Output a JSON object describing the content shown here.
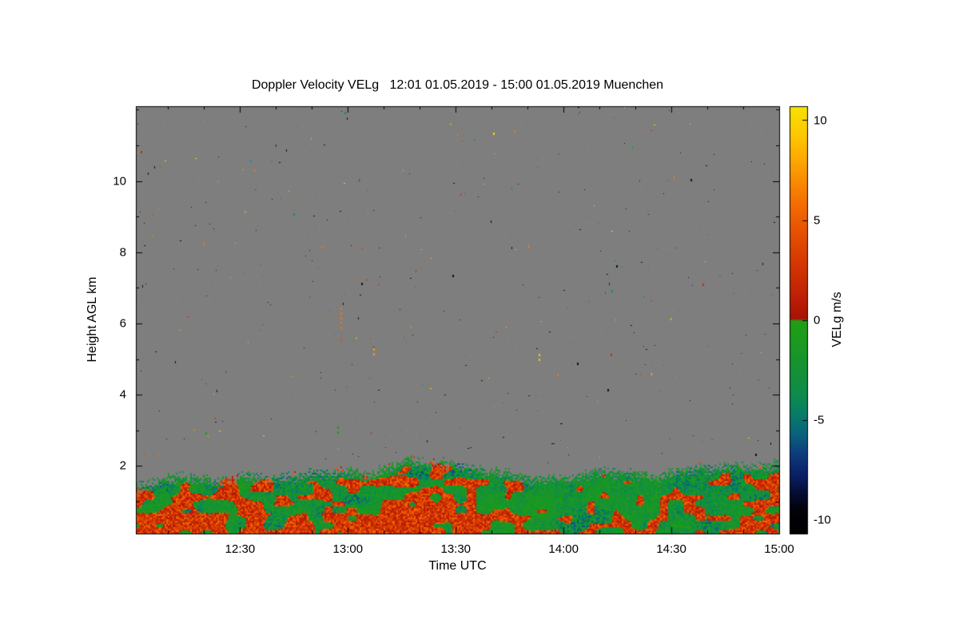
{
  "chart_data": {
    "type": "heatmap",
    "title": "Doppler Velocity VELg   12:01 01.05.2019 - 15:00 01.05.2019 Muenchen",
    "xlabel": "Time UTC",
    "ylabel": "Height AGL km",
    "x_start": "12:01",
    "x_end": "15:00",
    "date": "01.05.2019",
    "station": "Muenchen",
    "x_ticks": [
      "12:30",
      "13:00",
      "13:30",
      "14:00",
      "14:30",
      "15:00"
    ],
    "x_tick_minutes": [
      30,
      60,
      90,
      120,
      150,
      180
    ],
    "x_range_minutes": [
      1,
      180
    ],
    "x_minor_step_minutes": 10,
    "y_ticks": [
      2,
      4,
      6,
      8,
      10
    ],
    "y_minor_step_km": 1,
    "ylim_km": [
      0.1,
      12.1
    ],
    "colorbar": {
      "label": "VELg m/s",
      "units": "m/s",
      "ticks": [
        10,
        5,
        0,
        -5,
        -10
      ],
      "range": [
        -10.7,
        10.7
      ]
    },
    "no_signal_color": "#7e7e7e",
    "seed": 7,
    "colormap_stops": [
      [
        -10.7,
        "#000000"
      ],
      [
        -9.5,
        "#02020a"
      ],
      [
        -8.8,
        "#050b2e"
      ],
      [
        -7.8,
        "#0a1f66"
      ],
      [
        -6.8,
        "#0d3a7d"
      ],
      [
        -5.8,
        "#0a5f7d"
      ],
      [
        -5.0,
        "#08766e"
      ],
      [
        -4.0,
        "#0a8a52"
      ],
      [
        -3.0,
        "#128f3e"
      ],
      [
        -2.0,
        "#17942c"
      ],
      [
        -1.0,
        "#1c9a1e"
      ],
      [
        -0.05,
        "#219d14"
      ],
      [
        0.05,
        "#a81206"
      ],
      [
        1.5,
        "#c32405"
      ],
      [
        3.0,
        "#d63a02"
      ],
      [
        4.5,
        "#e75302"
      ],
      [
        6.0,
        "#f57201"
      ],
      [
        7.5,
        "#fb9a00"
      ],
      [
        9.0,
        "#fdc200"
      ],
      [
        10.7,
        "#f8e200"
      ]
    ],
    "band_profile_units": {
      "t": "minutes after 12:00 UTC",
      "top_km": "km AGL",
      "red_frac": "fraction of positive (downward-red) velocities 0-1"
    },
    "band_profile": [
      {
        "t": 1,
        "top_km": 1.55,
        "red_frac": 0.45
      },
      {
        "t": 8,
        "top_km": 1.7,
        "red_frac": 0.55
      },
      {
        "t": 16,
        "top_km": 1.75,
        "red_frac": 0.6
      },
      {
        "t": 24,
        "top_km": 1.7,
        "red_frac": 0.6
      },
      {
        "t": 32,
        "top_km": 1.75,
        "red_frac": 0.5
      },
      {
        "t": 40,
        "top_km": 1.7,
        "red_frac": 0.45
      },
      {
        "t": 48,
        "top_km": 1.8,
        "red_frac": 0.5
      },
      {
        "t": 56,
        "top_km": 1.85,
        "red_frac": 0.5
      },
      {
        "t": 64,
        "top_km": 1.9,
        "red_frac": 0.55
      },
      {
        "t": 70,
        "top_km": 2.0,
        "red_frac": 0.7
      },
      {
        "t": 76,
        "top_km": 2.35,
        "red_frac": 0.85
      },
      {
        "t": 80,
        "top_km": 2.25,
        "red_frac": 0.85
      },
      {
        "t": 86,
        "top_km": 2.05,
        "red_frac": 0.75
      },
      {
        "t": 92,
        "top_km": 1.95,
        "red_frac": 0.65
      },
      {
        "t": 98,
        "top_km": 1.85,
        "red_frac": 0.45
      },
      {
        "t": 105,
        "top_km": 1.8,
        "red_frac": 0.3
      },
      {
        "t": 112,
        "top_km": 1.75,
        "red_frac": 0.22
      },
      {
        "t": 120,
        "top_km": 1.8,
        "red_frac": 0.2
      },
      {
        "t": 128,
        "top_km": 1.85,
        "red_frac": 0.25
      },
      {
        "t": 136,
        "top_km": 1.8,
        "red_frac": 0.28
      },
      {
        "t": 144,
        "top_km": 1.85,
        "red_frac": 0.3
      },
      {
        "t": 152,
        "top_km": 1.9,
        "red_frac": 0.32
      },
      {
        "t": 160,
        "top_km": 1.9,
        "red_frac": 0.35
      },
      {
        "t": 168,
        "top_km": 1.95,
        "red_frac": 0.45
      },
      {
        "t": 174,
        "top_km": 2.0,
        "red_frac": 0.5
      },
      {
        "t": 180,
        "top_km": 2.15,
        "red_frac": 0.55
      }
    ],
    "features": [
      {
        "t": 58,
        "h_km": 5.85,
        "len_km": 0.6,
        "color": "#f57201",
        "style": "dashed-vertical"
      },
      {
        "t": 58,
        "h_km": 5.45,
        "len_km": 0.15,
        "color": "#e75302",
        "style": "dashed-vertical"
      },
      {
        "t": 67,
        "h_km": 5.05,
        "len_km": 0.25,
        "color": "#fb9a00",
        "style": "dashed-vertical"
      },
      {
        "t": 57,
        "h_km": 2.9,
        "len_km": 0.2,
        "color": "#1c9a1e",
        "style": "dashed-vertical"
      },
      {
        "t": 113,
        "h_km": 5.0,
        "len_km": 0.15,
        "color": "#fdc200",
        "style": "dashed-vertical"
      }
    ],
    "speckle": {
      "count": 420,
      "palette": [
        {
          "color": "#101010",
          "w": 0.28
        },
        {
          "color": "#ff8800",
          "w": 0.2
        },
        {
          "color": "#cc2a06",
          "w": 0.13
        },
        {
          "color": "#ffd400",
          "w": 0.1
        },
        {
          "color": "#0a8a8a",
          "w": 0.14
        },
        {
          "color": "#1c9a1e",
          "w": 0.09
        },
        {
          "color": "#0a1f66",
          "w": 0.06
        }
      ]
    }
  }
}
